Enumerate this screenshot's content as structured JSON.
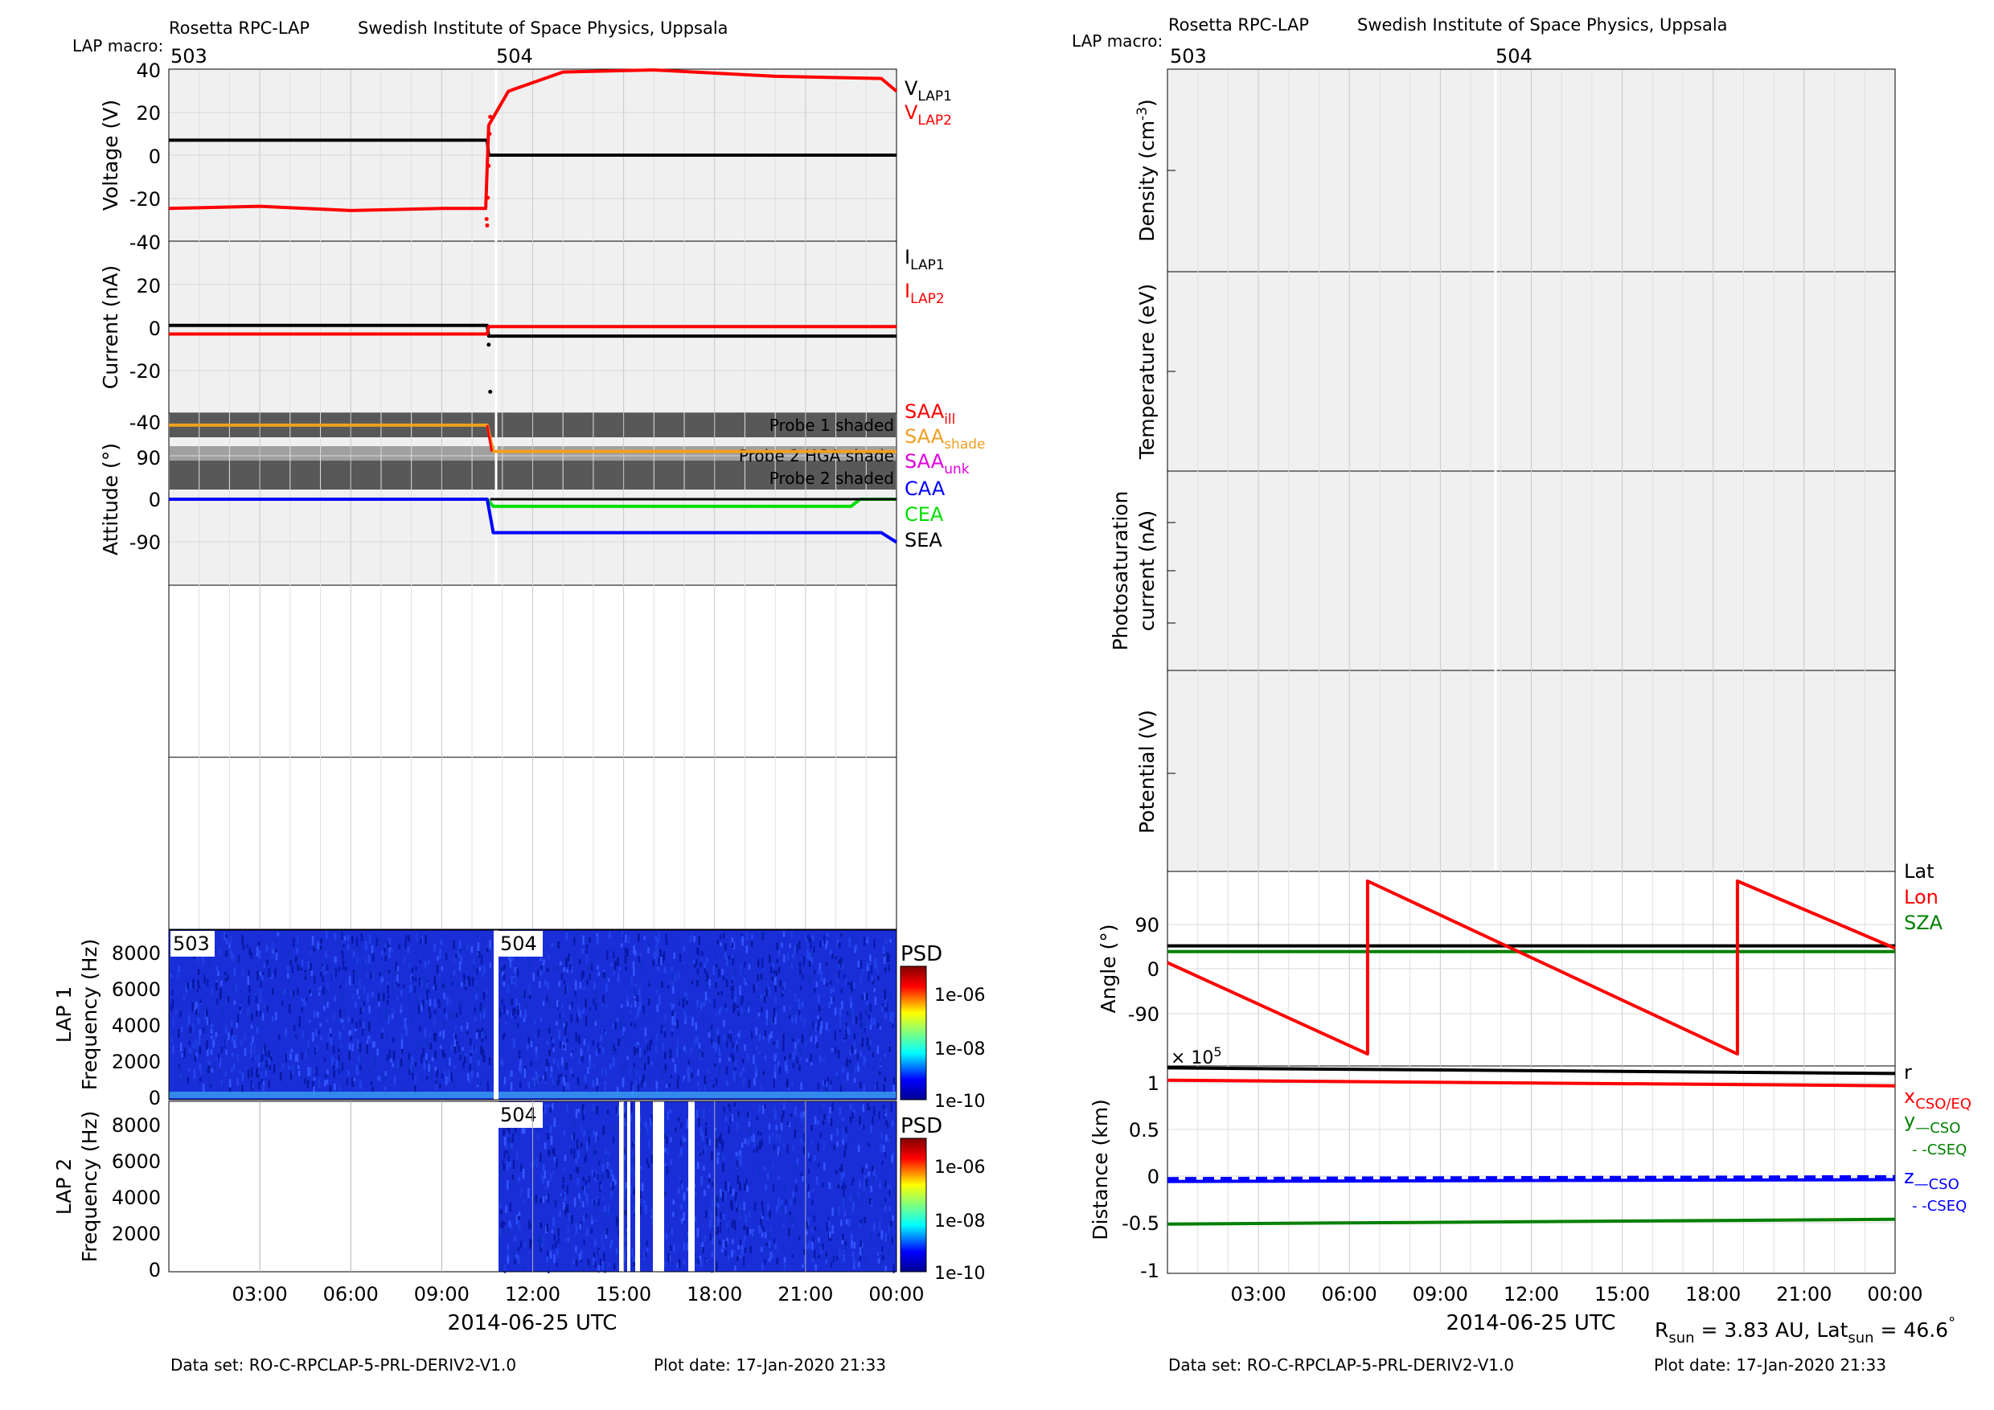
{
  "left_header": {
    "title_left": "Rosetta RPC-LAP",
    "title_right": "Swedish Institute of Space Physics, Uppsala",
    "macro_label": "LAP macro:",
    "macro_503": "503",
    "macro_504": "504"
  },
  "right_header": {
    "title_left": "Rosetta RPC-LAP",
    "title_right": "Swedish Institute of Space Physics, Uppsala",
    "macro_label": "LAP macro:",
    "macro_503": "503",
    "macro_504": "504"
  },
  "left_footer": {
    "dataset": "Data set: RO-C-RPCLAP-5-PRL-DERIV2-V1.0",
    "plotdate": "Plot date: 17-Jan-2020 21:33",
    "xlabel": "2014-06-25 UTC"
  },
  "right_footer": {
    "dataset": "Data set: RO-C-RPCLAP-5-PRL-DERIV2-V1.0",
    "plotdate": "Plot date: 17-Jan-2020 21:33",
    "xlabel": "2014-06-25 UTC",
    "rsun_text": "R",
    "rsun_sub": "sun",
    "rsun_val": " = 3.83 AU, Lat",
    "lat_sub": "sun",
    "lat_val": " = 46.6",
    "deg": "°"
  },
  "time_ticks": [
    "03:00",
    "06:00",
    "09:00",
    "12:00",
    "15:00",
    "18:00",
    "21:00",
    "00:00"
  ],
  "panel_text": {
    "voltage_label": "Voltage (V)",
    "current_label": "Current (nA)",
    "attitude_label": "Attitude (°)",
    "lap1_label": "LAP 1",
    "lap2_label": "LAP 2",
    "freq_label": "Frequency (Hz)",
    "psd": "PSD",
    "psd_ticks": [
      "1e-06",
      "1e-08",
      "1e-10"
    ],
    "spec1_503": "503",
    "spec1_504": "504",
    "spec2_504": "504",
    "probe1_shaded": "Probe 1 shaded",
    "probe2_hga": "Probe 2 HGA shade",
    "probe2_shaded": "Probe 2 shaded",
    "density_label": "Density (cm",
    "density_exp": "-3",
    "density_close": ")",
    "temperature_label": "Temperature (eV)",
    "photo_label1": "Photosaturation",
    "photo_label2": "current (nA)",
    "potential_label": "Potential (V)",
    "angle_label": "Angle (°)",
    "distance_label": "Distance (km)",
    "exp_x": "× 10",
    "exp_5": "5"
  },
  "legends": {
    "vlap1": {
      "base": "V",
      "sub": "LAP1"
    },
    "vlap2": {
      "base": "V",
      "sub": "LAP2"
    },
    "ilap1": {
      "base": "I",
      "sub": "LAP1"
    },
    "ilap2": {
      "base": "I",
      "sub": "LAP2"
    },
    "saa_ill": {
      "base": "SAA",
      "sub": "ill"
    },
    "saa_shade": {
      "base": "SAA",
      "sub": "shade"
    },
    "saa_unk": {
      "base": "SAA",
      "sub": "unk"
    },
    "caa": "CAA",
    "cea": "CEA",
    "sea": "SEA",
    "lat": "Lat",
    "lon": "Lon",
    "sza": "SZA",
    "r": "r",
    "x": {
      "base": "x",
      "sub": "CSO/EQ"
    },
    "y": {
      "base": "y",
      "sub": "—CSO"
    },
    "y2": "- -CSEQ",
    "z": {
      "base": "z",
      "sub": "—CSO"
    },
    "z2": "- -CSEQ"
  },
  "colors": {
    "red": "#ff0000",
    "black": "#000000",
    "orange": "#f0a020",
    "magenta": "#e000e0",
    "blue": "#0000ff",
    "green": "#00dd00",
    "dkgreen": "#008000",
    "panel_bg": "#f0f0f0",
    "grid": "#d0d0d0",
    "shade_dark": "#585858",
    "shade_light": "#a0a0a0"
  },
  "chart_data": [
    {
      "type": "line",
      "title": "Voltage",
      "ylabel": "Voltage (V)",
      "ylim": [
        -40,
        40
      ],
      "yticks": [
        -40,
        -20,
        0,
        20,
        40
      ],
      "series": [
        {
          "name": "VLAP1",
          "x": [
            0,
            10.5,
            10.55,
            24
          ],
          "y": [
            7,
            7,
            0,
            0
          ]
        },
        {
          "name": "VLAP2",
          "x": [
            0,
            3,
            6,
            9,
            10.45,
            10.55,
            11.2,
            13,
            16,
            20,
            23.5,
            24
          ],
          "y": [
            -25,
            -24,
            -26,
            -25,
            -25,
            14,
            30,
            39,
            40,
            37,
            36,
            30
          ]
        }
      ]
    },
    {
      "type": "line",
      "title": "Current",
      "ylabel": "Current (nA)",
      "ylim": [
        -40,
        40
      ],
      "yticks": [
        -40,
        -20,
        0,
        20
      ],
      "series": [
        {
          "name": "ILAP1",
          "x": [
            0,
            10.5,
            10.55,
            24
          ],
          "y": [
            1,
            1,
            -4,
            -4
          ]
        },
        {
          "name": "ILAP2",
          "x": [
            0,
            10.5,
            10.55,
            24
          ],
          "y": [
            -3,
            -3,
            0.5,
            0.5
          ]
        }
      ]
    },
    {
      "type": "line",
      "title": "Attitude",
      "ylabel": "Attitude (°)",
      "ylim": [
        -180,
        180
      ],
      "yticks": [
        -90,
        0,
        90
      ],
      "series": [
        {
          "name": "SAAill",
          "x": [
            0,
            10.5,
            10.7,
            24
          ],
          "y": [
            155,
            155,
            100,
            100
          ]
        },
        {
          "name": "SAAshade",
          "x": [
            0,
            10.5,
            10.7,
            24
          ],
          "y": [
            155,
            155,
            100,
            100
          ]
        },
        {
          "name": "CAA",
          "x": [
            0,
            10.5,
            10.7,
            21.5,
            23.5,
            24
          ],
          "y": [
            0,
            0,
            -70,
            -70,
            -70,
            -90
          ]
        },
        {
          "name": "CEA",
          "x": [
            0,
            10.5,
            10.7,
            22.5,
            22.8,
            24
          ],
          "y": [
            0,
            0,
            -15,
            -15,
            0,
            0
          ]
        },
        {
          "name": "SEA",
          "x": [
            10.6,
            24
          ],
          "y": [
            0,
            0
          ]
        }
      ]
    },
    {
      "type": "heatmap",
      "title": "LAP 1",
      "ylabel": "Frequency (Hz)",
      "ylim": [
        0,
        9400
      ],
      "yticks": [
        0,
        2000,
        4000,
        6000,
        8000
      ],
      "colorbar": "PSD",
      "clim": [
        "1e-10",
        "1e-06"
      ]
    },
    {
      "type": "heatmap",
      "title": "LAP 2",
      "ylabel": "Frequency (Hz)",
      "ylim": [
        0,
        9400
      ],
      "yticks": [
        0,
        2000,
        4000,
        6000,
        8000
      ],
      "colorbar": "PSD",
      "clim": [
        "1e-10",
        "1e-06"
      ]
    },
    {
      "type": "line",
      "title": "Angle",
      "ylabel": "Angle (°)",
      "ylim": [
        -200,
        200
      ],
      "yticks": [
        -90,
        0,
        90
      ],
      "series": [
        {
          "name": "Lat",
          "x": [
            0,
            24
          ],
          "y": [
            45,
            45
          ]
        },
        {
          "name": "Lon",
          "x": [
            0,
            6.6,
            6.6,
            18.8,
            18.8,
            24
          ],
          "y": [
            10,
            -180,
            180,
            -180,
            180,
            40
          ]
        },
        {
          "name": "SZA",
          "x": [
            0,
            24
          ],
          "y": [
            33,
            33
          ]
        }
      ]
    },
    {
      "type": "line",
      "title": "Distance",
      "ylabel": "Distance (km)",
      "ylim": [
        -1,
        1.1
      ],
      "yticks": [
        -1,
        -0.5,
        0,
        0.5,
        1
      ],
      "scale": "x 10^5",
      "series": [
        {
          "name": "r",
          "x": [
            0,
            24
          ],
          "y": [
            1.08,
            1.02
          ]
        },
        {
          "name": "x",
          "x": [
            0,
            24
          ],
          "y": [
            0.95,
            0.89
          ]
        },
        {
          "name": "y",
          "x": [
            0,
            24
          ],
          "y": [
            -0.57,
            -0.52
          ]
        },
        {
          "name": "z",
          "x": [
            0,
            24
          ],
          "y": [
            -0.12,
            -0.1
          ]
        }
      ]
    }
  ]
}
